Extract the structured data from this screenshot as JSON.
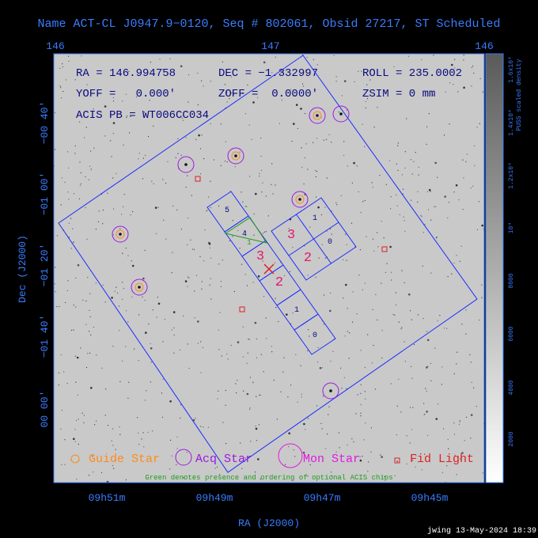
{
  "header": {
    "title": "Name ACT-CL J0947.9−0120, Seq # 802061, Obsid 27217, ST Scheduled"
  },
  "axes": {
    "top_ticks": [
      "146",
      "147",
      "146"
    ],
    "left_ticks": [
      "−00 40'",
      "−01 00'",
      "−01 20'",
      "−01 40'",
      "00 00'"
    ],
    "left_label": "Dec (J2000)",
    "bottom_ticks": [
      "09h51m",
      "09h49m",
      "09h47m",
      "09h45m"
    ],
    "bottom_label": "RA (J2000)"
  },
  "info": {
    "ra": "RA = 146.994758",
    "dec": "DEC = −1.332997",
    "roll": "ROLL = 235.0002",
    "yoff": "YOFF =   0.000'",
    "zoff": "ZOFF =  0.0000'",
    "zsim": "ZSIM = 0 mm",
    "acis_pb": "ACIS PB = WT006CC034"
  },
  "chips": {
    "acis_s": [
      "5",
      "4",
      "1",
      "3",
      "2",
      "1",
      "0"
    ],
    "acis_i": [
      "1",
      "0",
      "3",
      "2"
    ]
  },
  "legend": {
    "guide": "Guide Star",
    "acq": "Acq Star",
    "mon": "Mon Star",
    "fid": "Fid Light",
    "note": "Green denotes presence and ordering of optional ACIS chips"
  },
  "colorbar": {
    "label": "PUSS scaled density",
    "ticks": [
      "2000",
      "4000",
      "6000",
      "8000",
      "10⁴",
      "1.2x10⁴",
      "1.4x10⁴",
      "1.6x10⁴"
    ]
  },
  "footer": {
    "stamp": "jwing 13-May-2024 18:39"
  }
}
